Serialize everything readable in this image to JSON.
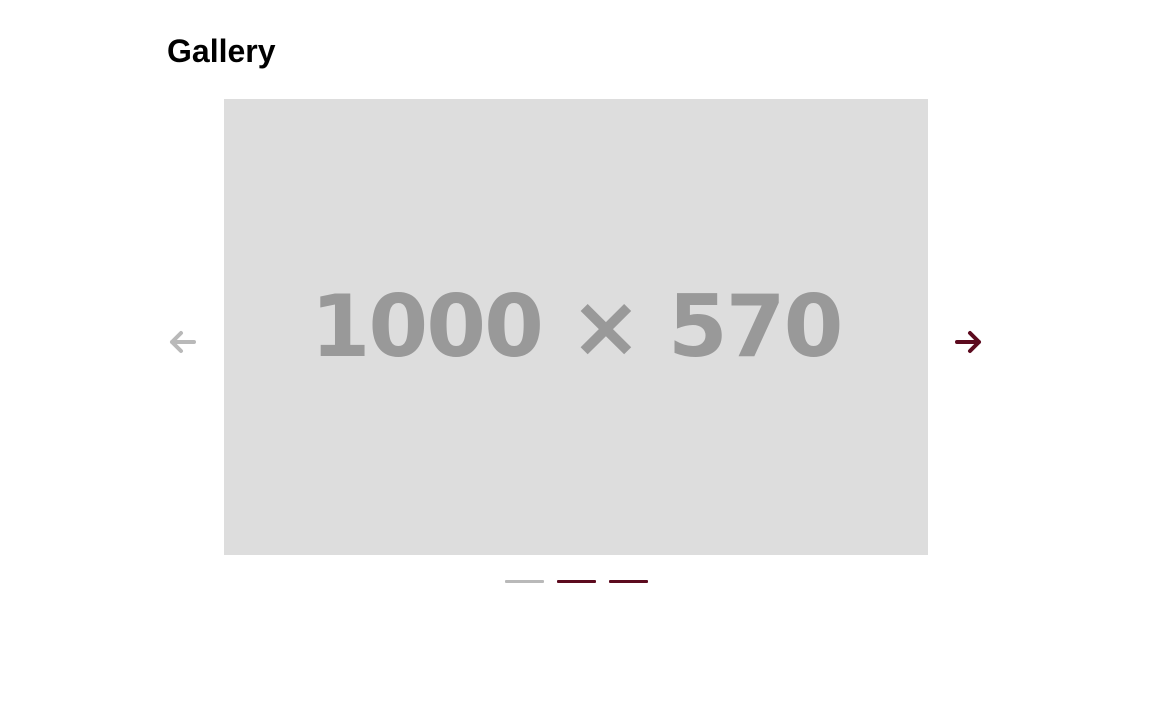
{
  "page": {
    "title": "Gallery"
  },
  "carousel": {
    "slide_placeholder_text": "1000 × 570",
    "active_index": 0,
    "slide_count": 3,
    "prev_arrow_icon": "arrow-left-icon",
    "next_arrow_icon": "arrow-right-icon",
    "prev_arrow_enabled": false,
    "next_arrow_enabled": true
  },
  "colors": {
    "accent": "#5c0a1e",
    "inactive": "#b9b9b9",
    "slide_background": "#dddddd",
    "slide_text": "#999999"
  }
}
